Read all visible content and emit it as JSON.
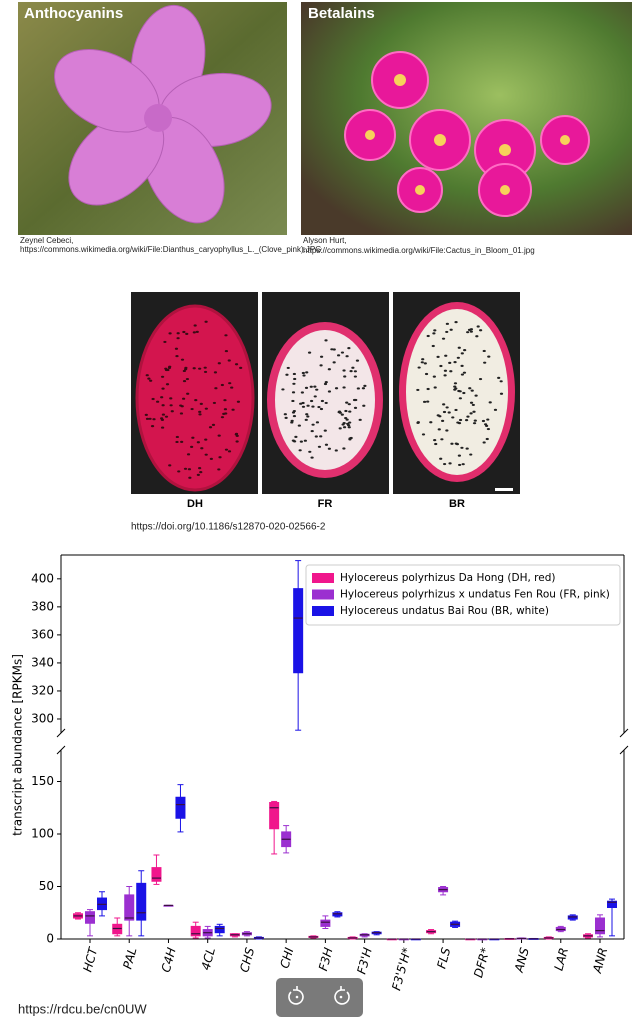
{
  "photos": [
    {
      "label": "Anthocyanins",
      "credit_lines": [
        "Zeynel Cebeci,",
        "https://commons.wikimedia.org/wiki/File:Dianthus_caryophyllus_L._(Clove_pink).JPG"
      ]
    },
    {
      "label": "Betalains",
      "credit_lines": [
        "Alyson Hurt,",
        "https://commons.wikimedia.org/wiki/File:Cactus_in_Bloom_01.jpg"
      ]
    }
  ],
  "fruits": {
    "labels": [
      "DH",
      "FR",
      "BR"
    ],
    "source": "https://doi.org/10.1186/s12870-020-02566-2"
  },
  "chart_data": {
    "type": "box",
    "ylabel": "transcript abundance [RPKMs]",
    "categories": [
      "HCT",
      "PAL",
      "C4H",
      "4CL",
      "CHS",
      "CHI",
      "F3H",
      "F3'H",
      "F3'5'H*",
      "FLS",
      "DFR*",
      "ANS",
      "LAR",
      "ANR"
    ],
    "series": [
      {
        "name": "Hylocereus polyrhizus Da Hong (DH, red)",
        "color": "#f0168c",
        "values": [
          [
            19,
            20,
            22,
            24,
            25
          ],
          [
            3,
            5,
            10,
            14,
            20
          ],
          [
            52,
            55,
            58,
            68,
            80
          ],
          [
            1,
            3,
            5,
            12,
            16
          ],
          [
            2,
            3,
            4,
            5,
            5
          ],
          [
            81,
            105,
            125,
            130,
            131
          ],
          [
            1,
            1.5,
            2,
            2.5,
            3
          ],
          [
            0,
            0.5,
            1,
            1.5,
            2
          ],
          [
            0,
            0,
            0,
            0,
            0
          ],
          [
            5,
            6,
            7,
            8,
            9
          ],
          [
            0,
            0,
            0,
            0,
            0
          ],
          [
            0,
            0,
            0.2,
            0.4,
            0.5
          ],
          [
            0,
            0.5,
            1,
            1.5,
            2
          ],
          [
            1,
            2,
            3,
            4,
            5
          ]
        ]
      },
      {
        "name": "Hylocereus polyrhizus x undatus Fen Rou (FR, pink)",
        "color": "#9b2fd0",
        "values": [
          [
            3,
            15,
            22,
            26,
            28
          ],
          [
            3,
            18,
            20,
            42,
            50
          ],
          [
            32,
            32,
            32,
            32,
            32
          ],
          [
            1,
            3,
            6,
            9,
            12
          ],
          [
            3,
            4,
            5,
            6,
            7
          ],
          [
            82,
            88,
            95,
            102,
            108
          ],
          [
            10,
            12,
            16,
            18,
            22
          ],
          [
            2,
            3,
            4,
            4.5,
            5
          ],
          [
            0,
            0,
            0,
            0,
            0
          ],
          [
            42,
            45,
            47,
            49,
            50
          ],
          [
            0,
            0,
            0,
            0,
            0
          ],
          [
            0,
            0.3,
            0.5,
            0.8,
            1
          ],
          [
            7,
            8,
            9,
            11,
            12
          ],
          [
            2,
            5,
            8,
            20,
            23
          ]
        ]
      },
      {
        "name": "Hylocereus undatus Bai Rou (BR, white)",
        "color": "#1a12e6",
        "values": [
          [
            22,
            28,
            33,
            39,
            45
          ],
          [
            3,
            18,
            25,
            53,
            65
          ],
          [
            102,
            115,
            128,
            135,
            147
          ],
          [
            3,
            6,
            10,
            12,
            14
          ],
          [
            0,
            0.5,
            1,
            1.5,
            2
          ],
          [
            292,
            333,
            372,
            393,
            413
          ],
          [
            21,
            22,
            24,
            25,
            26
          ],
          [
            4,
            5,
            6,
            6.5,
            7
          ],
          [
            0,
            0,
            0,
            0,
            0
          ],
          [
            11,
            12,
            14,
            16,
            17
          ],
          [
            0,
            0,
            0,
            0,
            0
          ],
          [
            0,
            0,
            0.2,
            0.4,
            0.5
          ],
          [
            18,
            19,
            21,
            22,
            23
          ],
          [
            3,
            30,
            35,
            36,
            38
          ]
        ]
      }
    ],
    "ylim": [
      0,
      180
    ],
    "yticks": [
      0,
      50,
      100,
      150
    ],
    "ylim_upper": [
      290,
      417
    ],
    "yticks_upper": [
      300,
      320,
      340,
      360,
      380,
      400
    ],
    "legend": "upper right"
  },
  "footer_link": "https://rdcu.be/cn0UW"
}
